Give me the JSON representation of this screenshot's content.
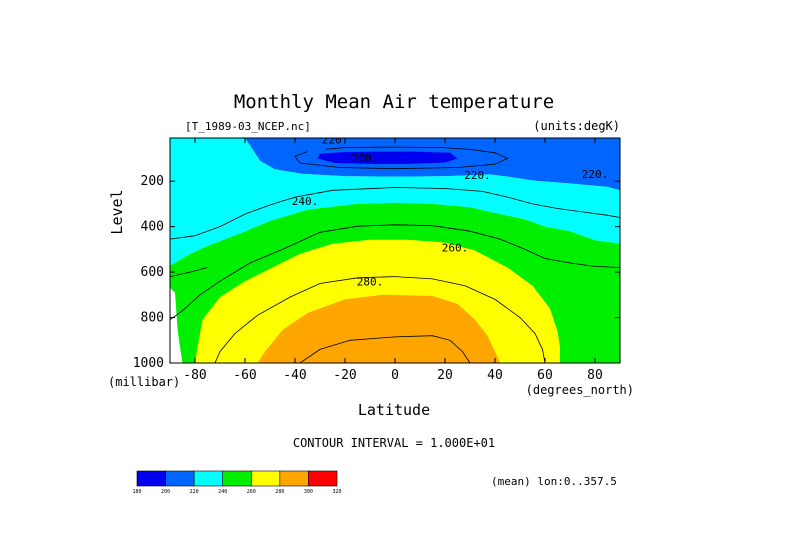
{
  "chart_data": {
    "type": "contour",
    "title": "Monthly Mean Air temperature",
    "file_label": "[T_1989-03_NCEP.nc]",
    "units_label": "(units:degK)",
    "xlabel": "Latitude",
    "x_units": "(degrees_north)",
    "ylabel": "Level",
    "y_units": "(millibar)",
    "xlim": [
      -90,
      90
    ],
    "ylim": [
      1000,
      10
    ],
    "x_ticks": [
      -80,
      -60,
      -40,
      -20,
      0,
      20,
      40,
      60,
      80
    ],
    "x_tick_labels": [
      "-80",
      "-60",
      "-40",
      "-20",
      "0",
      "20",
      "40",
      "60",
      "80"
    ],
    "y_ticks": [
      200,
      400,
      600,
      800,
      1000
    ],
    "y_tick_labels": [
      "200",
      "400",
      "600",
      "800",
      "1000"
    ],
    "contour_interval_text": "CONTOUR INTERVAL = 1.000E+01",
    "mean_text": "(mean) lon:0..357.5",
    "contour_labels": [
      {
        "text": "220.",
        "lat": -24,
        "level": 35
      },
      {
        "text": "200.",
        "lat": -12,
        "level": 115
      },
      {
        "text": "220.",
        "lat": 33,
        "level": 190
      },
      {
        "text": "220.",
        "lat": 80,
        "level": 185
      },
      {
        "text": "240.",
        "lat": -36,
        "level": 305
      },
      {
        "text": "260.",
        "lat": 24,
        "level": 510
      },
      {
        "text": "280.",
        "lat": -10,
        "level": 660
      }
    ],
    "levels": [
      180,
      200,
      220,
      240,
      260,
      280,
      300,
      320
    ],
    "level_colors": [
      "#0000ee",
      "#0066ff",
      "#00ffff",
      "#00ee00",
      "#ffff00",
      "#ffa500",
      "#ff0000"
    ],
    "colorbar_labels": [
      "180",
      "200",
      "220",
      "240",
      "260",
      "280",
      "300",
      "320"
    ],
    "bands": [
      {
        "name": "200-220",
        "color": "#0066ff",
        "polygon": [
          [
            -60,
            10
          ],
          [
            -57,
            60
          ],
          [
            -54,
            110
          ],
          [
            -48,
            148
          ],
          [
            -37,
            168
          ],
          [
            -20,
            178
          ],
          [
            0,
            180
          ],
          [
            20,
            178
          ],
          [
            38,
            170
          ],
          [
            45,
            180
          ],
          [
            55,
            197
          ],
          [
            70,
            210
          ],
          [
            85,
            225
          ],
          [
            90,
            240
          ],
          [
            90,
            10
          ]
        ]
      },
      {
        "name": "180-200",
        "color": "#0000ee",
        "polygon": [
          [
            -30,
            80
          ],
          [
            -22,
            73
          ],
          [
            -7,
            70
          ],
          [
            8,
            70
          ],
          [
            22,
            75
          ],
          [
            25,
            100
          ],
          [
            20,
            118
          ],
          [
            5,
            124
          ],
          [
            -10,
            124
          ],
          [
            -24,
            120
          ],
          [
            -31,
            100
          ]
        ]
      },
      {
        "name": "220-240",
        "color": "#00ffff",
        "polygon": [
          [
            -90,
            10
          ],
          [
            -60,
            10
          ],
          [
            -57,
            60
          ],
          [
            -54,
            110
          ],
          [
            -48,
            148
          ],
          [
            -37,
            168
          ],
          [
            -20,
            178
          ],
          [
            0,
            180
          ],
          [
            20,
            178
          ],
          [
            38,
            170
          ],
          [
            45,
            180
          ],
          [
            55,
            197
          ],
          [
            70,
            210
          ],
          [
            85,
            225
          ],
          [
            90,
            240
          ],
          [
            90,
            475
          ],
          [
            80,
            460
          ],
          [
            70,
            420
          ],
          [
            60,
            400
          ],
          [
            52,
            368
          ],
          [
            40,
            340
          ],
          [
            30,
            315
          ],
          [
            15,
            300
          ],
          [
            0,
            295
          ],
          [
            -15,
            300
          ],
          [
            -35,
            325
          ],
          [
            -50,
            375
          ],
          [
            -62,
            430
          ],
          [
            -75,
            485
          ],
          [
            -82,
            520
          ],
          [
            -88,
            560
          ],
          [
            -90,
            570
          ]
        ]
      },
      {
        "name": "240-260",
        "color": "#00ee00",
        "polygon": [
          [
            -90,
            570
          ],
          [
            -88,
            560
          ],
          [
            -82,
            520
          ],
          [
            -75,
            485
          ],
          [
            -62,
            430
          ],
          [
            -50,
            375
          ],
          [
            -35,
            325
          ],
          [
            -15,
            300
          ],
          [
            0,
            295
          ],
          [
            15,
            300
          ],
          [
            30,
            315
          ],
          [
            40,
            340
          ],
          [
            52,
            368
          ],
          [
            60,
            400
          ],
          [
            70,
            420
          ],
          [
            80,
            460
          ],
          [
            90,
            475
          ],
          [
            90,
            1000
          ],
          [
            -85,
            1000
          ],
          [
            -86,
            930
          ],
          [
            -87,
            850
          ],
          [
            -88,
            690
          ],
          [
            -90,
            670
          ]
        ]
      },
      {
        "name": "260-280",
        "color": "#ffff00",
        "polygon": [
          [
            -80,
            1000
          ],
          [
            -79,
            930
          ],
          [
            -77,
            810
          ],
          [
            -70,
            710
          ],
          [
            -60,
            640
          ],
          [
            -50,
            585
          ],
          [
            -38,
            520
          ],
          [
            -25,
            475
          ],
          [
            -10,
            458
          ],
          [
            5,
            458
          ],
          [
            20,
            470
          ],
          [
            32,
            505
          ],
          [
            45,
            580
          ],
          [
            55,
            660
          ],
          [
            62,
            760
          ],
          [
            65,
            860
          ],
          [
            66,
            930
          ],
          [
            66,
            1000
          ]
        ]
      },
      {
        "name": "280-290",
        "color": "#ffa500",
        "polygon": [
          [
            -55,
            1000
          ],
          [
            -52,
            950
          ],
          [
            -45,
            855
          ],
          [
            -35,
            780
          ],
          [
            -20,
            720
          ],
          [
            -5,
            700
          ],
          [
            15,
            705
          ],
          [
            25,
            740
          ],
          [
            32,
            810
          ],
          [
            37,
            880
          ],
          [
            40,
            950
          ],
          [
            42,
            1000
          ]
        ]
      }
    ],
    "contours": [
      {
        "value": 230,
        "points": [
          [
            -90,
            455
          ],
          [
            -80,
            440
          ],
          [
            -70,
            400
          ],
          [
            -60,
            345
          ],
          [
            -50,
            305
          ],
          [
            -40,
            270
          ],
          [
            -25,
            240
          ],
          [
            0,
            228
          ],
          [
            20,
            232
          ],
          [
            35,
            245
          ],
          [
            45,
            270
          ],
          [
            55,
            300
          ],
          [
            65,
            320
          ],
          [
            75,
            335
          ],
          [
            85,
            350
          ],
          [
            90,
            360
          ]
        ]
      },
      {
        "value": 250,
        "points": [
          [
            -90,
            810
          ],
          [
            -85,
            770
          ],
          [
            -78,
            700
          ],
          [
            -70,
            640
          ],
          [
            -58,
            560
          ],
          [
            -45,
            500
          ],
          [
            -30,
            425
          ],
          [
            -15,
            398
          ],
          [
            0,
            392
          ],
          [
            15,
            396
          ],
          [
            30,
            420
          ],
          [
            42,
            455
          ],
          [
            52,
            500
          ],
          [
            60,
            540
          ],
          [
            70,
            560
          ],
          [
            80,
            575
          ],
          [
            90,
            580
          ]
        ]
      },
      {
        "value": 270,
        "points": [
          [
            -72,
            1000
          ],
          [
            -70,
            950
          ],
          [
            -64,
            870
          ],
          [
            -55,
            790
          ],
          [
            -42,
            710
          ],
          [
            -30,
            650
          ],
          [
            -15,
            625
          ],
          [
            0,
            620
          ],
          [
            15,
            630
          ],
          [
            28,
            660
          ],
          [
            40,
            720
          ],
          [
            50,
            800
          ],
          [
            56,
            870
          ],
          [
            59,
            940
          ],
          [
            60,
            1000
          ]
        ]
      },
      {
        "value": 290,
        "points": [
          [
            -38,
            1000
          ],
          [
            -30,
            940
          ],
          [
            -18,
            900
          ],
          [
            0,
            885
          ],
          [
            15,
            880
          ],
          [
            22,
            900
          ],
          [
            27,
            950
          ],
          [
            30,
            1000
          ]
        ]
      },
      {
        "value": 210,
        "points": [
          [
            -28,
            60
          ],
          [
            -20,
            52
          ],
          [
            0,
            50
          ],
          [
            18,
            52
          ],
          [
            30,
            60
          ],
          [
            40,
            75
          ],
          [
            45,
            100
          ],
          [
            40,
            125
          ],
          [
            25,
            140
          ],
          [
            0,
            145
          ],
          [
            -22,
            140
          ],
          [
            -38,
            120
          ],
          [
            -40,
            90
          ],
          [
            -35,
            70
          ]
        ]
      },
      {
        "value": 250,
        "points": [
          [
            -90,
            620
          ],
          [
            -82,
            600
          ],
          [
            -75,
            580
          ]
        ]
      }
    ]
  }
}
